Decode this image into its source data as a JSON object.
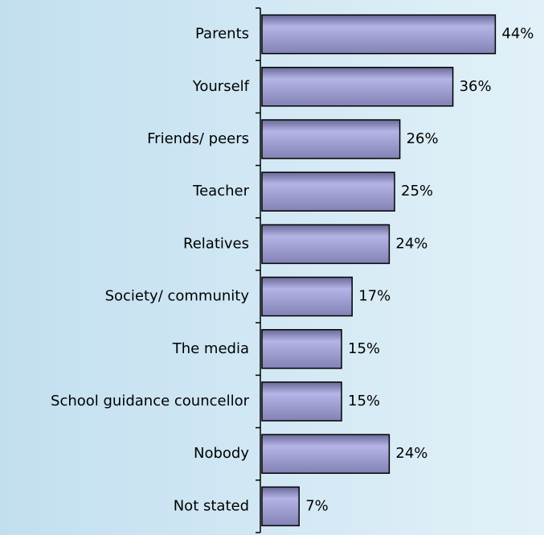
{
  "chart_data": {
    "type": "bar",
    "orientation": "horizontal",
    "categories": [
      "Parents",
      "Yourself",
      "Friends/ peers",
      "Teacher",
      "Relatives",
      "Society/ community",
      "The media",
      "School guidance councellor",
      "Nobody",
      "Not stated"
    ],
    "values": [
      44,
      36,
      26,
      25,
      24,
      17,
      15,
      15,
      24,
      7
    ],
    "value_labels": [
      "44%",
      "36%",
      "26%",
      "25%",
      "24%",
      "17%",
      "15%",
      "15%",
      "24%",
      "7%"
    ],
    "color": "#b4b4e6"
  }
}
